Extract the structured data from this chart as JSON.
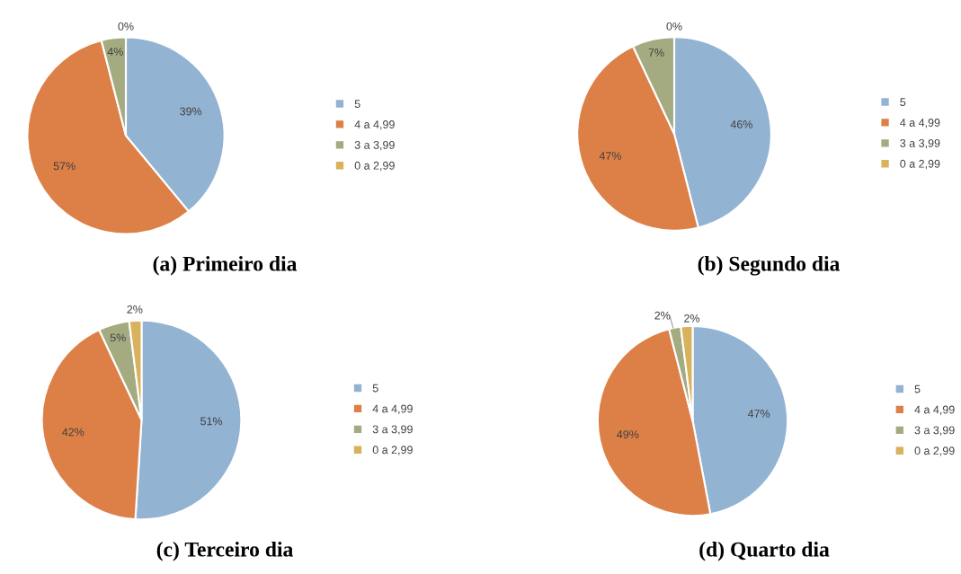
{
  "chart_data": [
    {
      "type": "pie",
      "title": "(a) Primeiro dia",
      "categories": [
        "5",
        "4 a 4,99",
        "3 a 3,99",
        "0 a 2,99"
      ],
      "values": [
        39,
        57,
        4,
        0
      ],
      "value_labels": [
        "39%",
        "57%",
        "4%",
        "0%"
      ],
      "colors": [
        "#93b3d2",
        "#dd8047",
        "#a5ab81",
        "#d8b25c"
      ],
      "legend": "right"
    },
    {
      "type": "pie",
      "title": "(b) Segundo dia",
      "categories": [
        "5",
        "4 a 4,99",
        "3 a 3,99",
        "0 a 2,99"
      ],
      "values": [
        46,
        47,
        7,
        0
      ],
      "value_labels": [
        "46%",
        "47%",
        "7%",
        "0%"
      ],
      "colors": [
        "#93b3d2",
        "#dd8047",
        "#a5ab81",
        "#d8b25c"
      ],
      "legend": "right"
    },
    {
      "type": "pie",
      "title": "(c) Terceiro dia",
      "categories": [
        "5",
        "4 a 4,99",
        "3 a 3,99",
        "0 a 2,99"
      ],
      "values": [
        51,
        42,
        5,
        2
      ],
      "value_labels": [
        "51%",
        "42%",
        "5%",
        "2%"
      ],
      "colors": [
        "#93b3d2",
        "#dd8047",
        "#a5ab81",
        "#d8b25c"
      ],
      "legend": "right"
    },
    {
      "type": "pie",
      "title": "(d) Quarto dia",
      "categories": [
        "5",
        "4 a 4,99",
        "3 a 3,99",
        "0 a 2,99"
      ],
      "values": [
        47,
        49,
        2,
        2
      ],
      "value_labels": [
        "47%",
        "49%",
        "2%",
        "2%"
      ],
      "colors": [
        "#93b3d2",
        "#dd8047",
        "#a5ab81",
        "#d8b25c"
      ],
      "legend": "right"
    }
  ]
}
